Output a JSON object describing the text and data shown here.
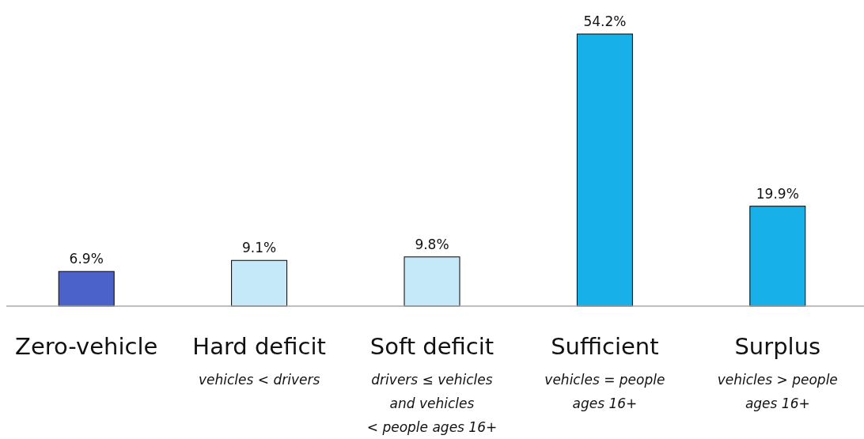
{
  "chart_data": {
    "type": "bar",
    "categories": [
      "Zero-vehicle",
      "Hard deficit",
      "Soft deficit",
      "Sufficient",
      "Surplus"
    ],
    "values": [
      6.9,
      9.1,
      9.8,
      54.2,
      19.9
    ],
    "value_labels": [
      "6.9%",
      "9.1%",
      "9.8%",
      "54.2%",
      "19.9%"
    ],
    "colors": [
      "#4a62c9",
      "#c6e9f9",
      "#c6e9f9",
      "#17b0e8",
      "#17b0e8"
    ],
    "annotations": [
      "vehicles < drivers",
      "drivers ≤ vehicles\nand vehicles\n< people ages 16+",
      "vehicles = people\nages 16+",
      "vehicles > people\nages 16+"
    ]
  }
}
